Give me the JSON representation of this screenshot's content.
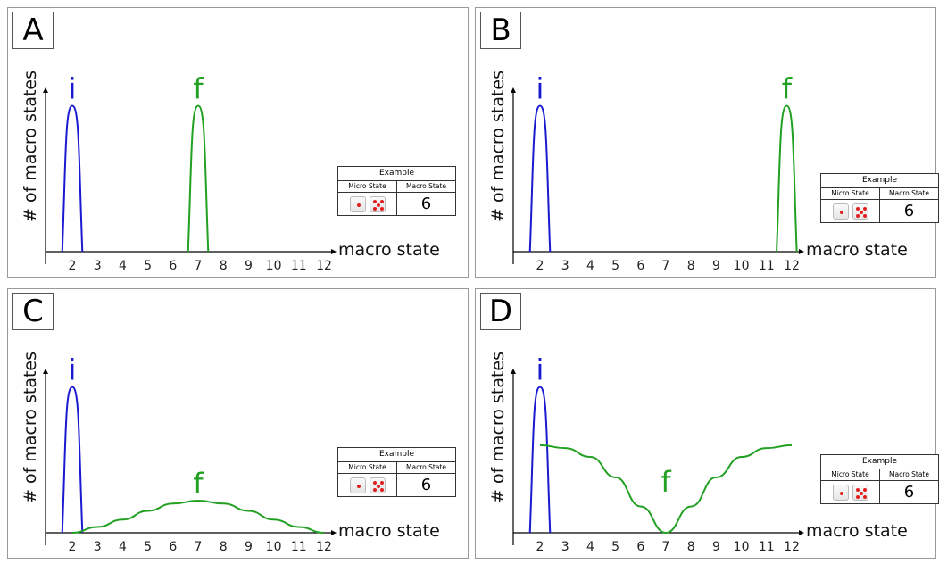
{
  "panels": [
    {
      "letter": "A",
      "ylabel": "# of macro states",
      "xlabel": "macro state",
      "initial_label": "i",
      "final_label": "f",
      "example": {
        "title": "Example",
        "col1": "Micro State",
        "col2": "Macro State",
        "value": "6",
        "dice": [
          "1-die-icon",
          "5-die-icon"
        ]
      }
    },
    {
      "letter": "B",
      "ylabel": "# of macro states",
      "xlabel": "macro state",
      "initial_label": "i",
      "final_label": "f",
      "example": {
        "title": "Example",
        "col1": "Micro State",
        "col2": "Macro State",
        "value": "6",
        "dice": [
          "1-die-icon",
          "5-die-icon"
        ]
      }
    },
    {
      "letter": "C",
      "ylabel": "# of macro states",
      "xlabel": "macro state",
      "initial_label": "i",
      "final_label": "f",
      "example": {
        "title": "Example",
        "col1": "Micro State",
        "col2": "Macro State",
        "value": "6",
        "dice": [
          "1-die-icon",
          "5-die-icon"
        ]
      }
    },
    {
      "letter": "D",
      "ylabel": "# of macro states",
      "xlabel": "macro state",
      "initial_label": "i",
      "final_label": "f",
      "example": {
        "title": "Example",
        "col1": "Micro State",
        "col2": "Macro State",
        "value": "6",
        "dice": [
          "1-die-icon",
          "5-die-icon"
        ]
      }
    }
  ],
  "colors": {
    "initial": "#1a1ad0",
    "final": "#22a022",
    "axis": "#000000"
  },
  "chart_data": [
    {
      "type": "line",
      "panel": "A",
      "xlabel": "macro state",
      "ylabel": "# of macro states",
      "categories": [
        "2",
        "3",
        "4",
        "5",
        "6",
        "7",
        "8",
        "9",
        "10",
        "11",
        "12"
      ],
      "xlim": [
        1,
        12.5
      ],
      "ylim": [
        0,
        1.15
      ],
      "series": [
        {
          "name": "i",
          "x": [
            1.6,
            1.8,
            2.0,
            2.2,
            2.4
          ],
          "y": [
            0,
            0.75,
            1.0,
            0.75,
            0
          ]
        },
        {
          "name": "f",
          "x": [
            6.6,
            6.8,
            7.0,
            7.2,
            7.4
          ],
          "y": [
            0,
            0.75,
            1.0,
            0.75,
            0
          ]
        }
      ]
    },
    {
      "type": "line",
      "panel": "B",
      "xlabel": "macro state",
      "ylabel": "# of macro states",
      "categories": [
        "2",
        "3",
        "4",
        "5",
        "6",
        "7",
        "8",
        "9",
        "10",
        "11",
        "12"
      ],
      "xlim": [
        1,
        12.5
      ],
      "ylim": [
        0,
        1.15
      ],
      "series": [
        {
          "name": "i",
          "x": [
            1.6,
            1.8,
            2.0,
            2.2,
            2.4
          ],
          "y": [
            0,
            0.75,
            1.0,
            0.75,
            0
          ]
        },
        {
          "name": "f",
          "x": [
            11.4,
            11.6,
            11.8,
            12.0,
            12.2
          ],
          "y": [
            0,
            0.75,
            1.0,
            0.75,
            0
          ]
        }
      ]
    },
    {
      "type": "line",
      "panel": "C",
      "xlabel": "macro state",
      "ylabel": "# of macro states",
      "categories": [
        "2",
        "3",
        "4",
        "5",
        "6",
        "7",
        "8",
        "9",
        "10",
        "11",
        "12"
      ],
      "xlim": [
        1,
        12.5
      ],
      "ylim": [
        0,
        1.15
      ],
      "series": [
        {
          "name": "i",
          "x": [
            1.6,
            1.8,
            2.0,
            2.2,
            2.4
          ],
          "y": [
            0,
            0.75,
            1.0,
            0.75,
            0
          ]
        },
        {
          "name": "f",
          "x": [
            2,
            3,
            4,
            5,
            6,
            7,
            8,
            9,
            10,
            11,
            12
          ],
          "y": [
            0.0,
            0.04,
            0.09,
            0.15,
            0.2,
            0.22,
            0.2,
            0.15,
            0.09,
            0.04,
            0.0
          ]
        }
      ]
    },
    {
      "type": "line",
      "panel": "D",
      "xlabel": "macro state",
      "ylabel": "# of macro states",
      "categories": [
        "2",
        "3",
        "4",
        "5",
        "6",
        "7",
        "8",
        "9",
        "10",
        "11",
        "12"
      ],
      "xlim": [
        1,
        12.5
      ],
      "ylim": [
        0,
        1.15
      ],
      "series": [
        {
          "name": "i",
          "x": [
            1.6,
            1.8,
            2.0,
            2.2,
            2.4
          ],
          "y": [
            0,
            0.75,
            1.0,
            0.75,
            0
          ]
        },
        {
          "name": "f",
          "x": [
            2,
            3,
            4,
            5,
            6,
            7,
            8,
            9,
            10,
            11,
            12
          ],
          "y": [
            0.6,
            0.58,
            0.52,
            0.38,
            0.18,
            0.0,
            0.18,
            0.38,
            0.52,
            0.58,
            0.6
          ]
        }
      ]
    }
  ]
}
